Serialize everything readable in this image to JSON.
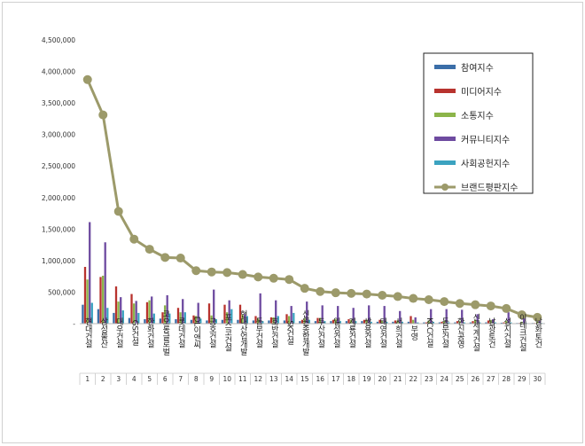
{
  "chart_data": {
    "type": "bar",
    "ylim": [
      0,
      4500000
    ],
    "yticks": [
      "4,500,000",
      "4,000,000",
      "3,500,000",
      "3,000,000",
      "2,500,000",
      "2,000,000",
      "1,500,000",
      "1,000,000",
      "500,000",
      "-"
    ],
    "ytick_values": [
      4500000,
      4000000,
      3500000,
      3000000,
      2500000,
      2000000,
      1500000,
      1000000,
      500000,
      0
    ],
    "grid": false,
    "legend_position": "top-right",
    "categories": [
      "현대건설",
      "삼성물산",
      "대우건설",
      "GS건설",
      "한화건설",
      "코오롱글로벌",
      "롯데건설",
      "DL이앤씨",
      "금호건설",
      "포스코건설",
      "현대산업개발",
      "동부건설",
      "호반건설",
      "SK건설",
      "신원종합개발",
      "두산건설",
      "일성건설",
      "계룡건설",
      "쌍용건설",
      "태영건설",
      "서희건설",
      "부영",
      "KCC건설",
      "동문건설",
      "한신공영",
      "신세계건설",
      "남광토건",
      "성지건설",
      "이테크건설",
      "남화토건"
    ],
    "ranks": [
      "1",
      "2",
      "3",
      "4",
      "5",
      "6",
      "7",
      "8",
      "9",
      "10",
      "11",
      "12",
      "13",
      "14",
      "15",
      "16",
      "17",
      "18",
      "19",
      "20",
      "21",
      "22",
      "23",
      "24",
      "25",
      "26",
      "27",
      "28",
      "29",
      "30"
    ],
    "series": [
      {
        "name": "참여지수",
        "color": "#3b6ea8",
        "kind": "bar",
        "values": [
          300000,
          230000,
          170000,
          90000,
          70000,
          80000,
          70000,
          60000,
          50000,
          60000,
          60000,
          50000,
          50000,
          50000,
          40000,
          40000,
          40000,
          40000,
          40000,
          30000,
          30000,
          30000,
          20000,
          20000,
          20000,
          20000,
          20000,
          15000,
          10000,
          10000
        ]
      },
      {
        "name": "미디어지수",
        "color": "#b8332e",
        "kind": "bar",
        "values": [
          900000,
          740000,
          590000,
          470000,
          340000,
          180000,
          250000,
          130000,
          320000,
          300000,
          300000,
          120000,
          100000,
          150000,
          60000,
          90000,
          60000,
          70000,
          60000,
          60000,
          50000,
          120000,
          20000,
          30000,
          40000,
          40000,
          50000,
          20000,
          10000,
          10000
        ]
      },
      {
        "name": "소통지수",
        "color": "#8cb54a",
        "kind": "bar",
        "values": [
          700000,
          760000,
          350000,
          320000,
          370000,
          290000,
          180000,
          120000,
          130000,
          180000,
          140000,
          80000,
          100000,
          120000,
          80000,
          90000,
          70000,
          60000,
          60000,
          50000,
          50000,
          60000,
          50000,
          40000,
          40000,
          60000,
          60000,
          40000,
          30000,
          30000
        ]
      },
      {
        "name": "커뮤니티지수",
        "color": "#6e4ba0",
        "kind": "bar",
        "values": [
          1610000,
          1290000,
          420000,
          360000,
          430000,
          450000,
          390000,
          330000,
          540000,
          370000,
          150000,
          480000,
          370000,
          280000,
          350000,
          290000,
          280000,
          250000,
          290000,
          280000,
          200000,
          100000,
          230000,
          230000,
          220000,
          150000,
          70000,
          180000,
          130000,
          90000
        ]
      },
      {
        "name": "사회공헌지수",
        "color": "#3ba3c0",
        "kind": "bar",
        "values": [
          330000,
          250000,
          210000,
          170000,
          160000,
          160000,
          180000,
          80000,
          70000,
          230000,
          120000,
          40000,
          120000,
          170000,
          60000,
          40000,
          40000,
          40000,
          30000,
          30000,
          30000,
          20000,
          30000,
          20000,
          20000,
          20000,
          20000,
          20000,
          10000,
          10000
        ]
      },
      {
        "name": "브랜드평판지수",
        "color": "#9c9a6a",
        "kind": "line",
        "values": [
          3870000,
          3310000,
          1780000,
          1340000,
          1180000,
          1050000,
          1040000,
          840000,
          820000,
          810000,
          780000,
          740000,
          720000,
          700000,
          560000,
          510000,
          490000,
          480000,
          470000,
          450000,
          430000,
          400000,
          380000,
          350000,
          320000,
          300000,
          280000,
          240000,
          140000,
          100000
        ]
      }
    ]
  }
}
